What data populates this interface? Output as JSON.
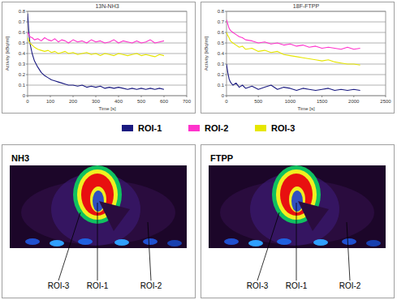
{
  "chart_data": [
    {
      "type": "line",
      "title": "13N-NH3",
      "x_label": "Time [s]",
      "y_label": "Activity [kBq/ml]",
      "x": [
        0,
        5,
        10,
        20,
        30,
        45,
        60,
        75,
        90,
        105,
        120,
        135,
        150,
        165,
        180,
        200,
        220,
        240,
        260,
        280,
        300,
        320,
        340,
        360,
        380,
        400,
        420,
        440,
        460,
        480,
        500,
        520,
        540,
        560,
        580,
        600
      ],
      "series": [
        {
          "name": "ROI-1",
          "color": "#1a1a80",
          "values": [
            0.78,
            0.62,
            0.5,
            0.4,
            0.33,
            0.27,
            0.22,
            0.19,
            0.17,
            0.15,
            0.14,
            0.13,
            0.12,
            0.11,
            0.1,
            0.1,
            0.09,
            0.1,
            0.08,
            0.09,
            0.08,
            0.09,
            0.07,
            0.08,
            0.07,
            0.08,
            0.07,
            0.06,
            0.07,
            0.06,
            0.07,
            0.06,
            0.07,
            0.06,
            0.07,
            0.06
          ]
        },
        {
          "name": "ROI-2",
          "color": "#ff33cc",
          "values": [
            0.6,
            0.58,
            0.56,
            0.55,
            0.53,
            0.54,
            0.52,
            0.55,
            0.53,
            0.52,
            0.54,
            0.51,
            0.53,
            0.52,
            0.5,
            0.53,
            0.51,
            0.52,
            0.5,
            0.53,
            0.51,
            0.52,
            0.5,
            0.51,
            0.53,
            0.5,
            0.52,
            0.51,
            0.5,
            0.52,
            0.5,
            0.51,
            0.53,
            0.5,
            0.51,
            0.52
          ]
        },
        {
          "name": "ROI-3",
          "color": "#e6e600",
          "values": [
            0.55,
            0.52,
            0.5,
            0.48,
            0.46,
            0.44,
            0.43,
            0.42,
            0.43,
            0.41,
            0.42,
            0.4,
            0.41,
            0.42,
            0.4,
            0.41,
            0.39,
            0.4,
            0.41,
            0.39,
            0.4,
            0.38,
            0.4,
            0.39,
            0.38,
            0.4,
            0.39,
            0.38,
            0.39,
            0.4,
            0.38,
            0.39,
            0.38,
            0.37,
            0.39,
            0.38
          ]
        }
      ],
      "xlim": [
        0,
        700
      ],
      "xticks": [
        0,
        100,
        200,
        300,
        400,
        500,
        600,
        700
      ],
      "ylim": [
        0,
        0.8
      ],
      "yticks": [
        0,
        0.1,
        0.2,
        0.3,
        0.4,
        0.5,
        0.6,
        0.7,
        0.8
      ],
      "grid": true
    },
    {
      "type": "line",
      "title": "18F-FTPP",
      "x_label": "Time [s]",
      "y_label": "Activity [kBq/ml]",
      "x": [
        0,
        20,
        40,
        60,
        100,
        150,
        200,
        250,
        300,
        400,
        500,
        600,
        700,
        800,
        900,
        1000,
        1100,
        1200,
        1300,
        1400,
        1500,
        1600,
        1700,
        1800,
        1900,
        2000,
        2100
      ],
      "series": [
        {
          "name": "ROI-1",
          "color": "#1a1a80",
          "values": [
            0.3,
            0.22,
            0.16,
            0.13,
            0.1,
            0.12,
            0.08,
            0.1,
            0.07,
            0.09,
            0.06,
            0.08,
            0.1,
            0.06,
            0.08,
            0.07,
            0.05,
            0.07,
            0.06,
            0.05,
            0.06,
            0.07,
            0.05,
            0.06,
            0.05,
            0.06,
            0.05
          ]
        },
        {
          "name": "ROI-2",
          "color": "#ff33cc",
          "values": [
            0.72,
            0.68,
            0.64,
            0.62,
            0.6,
            0.58,
            0.56,
            0.55,
            0.53,
            0.52,
            0.5,
            0.51,
            0.49,
            0.5,
            0.48,
            0.49,
            0.47,
            0.48,
            0.46,
            0.47,
            0.45,
            0.46,
            0.45,
            0.44,
            0.46,
            0.44,
            0.45
          ]
        },
        {
          "name": "ROI-3",
          "color": "#e6e600",
          "values": [
            0.6,
            0.57,
            0.55,
            0.52,
            0.5,
            0.48,
            0.46,
            0.47,
            0.44,
            0.45,
            0.42,
            0.43,
            0.41,
            0.42,
            0.39,
            0.38,
            0.37,
            0.36,
            0.35,
            0.34,
            0.33,
            0.34,
            0.32,
            0.31,
            0.3,
            0.3,
            0.29
          ]
        }
      ],
      "xlim": [
        0,
        2500
      ],
      "xticks": [
        0,
        500,
        1000,
        1500,
        2000,
        2500
      ],
      "ylim": [
        0,
        0.8
      ],
      "yticks": [
        0,
        0.1,
        0.2,
        0.3,
        0.4,
        0.5,
        0.6,
        0.7,
        0.8
      ],
      "grid": true
    }
  ],
  "images": [
    {
      "title": "NH3",
      "labels": [
        "ROI-3",
        "ROI-1",
        "ROI-2"
      ]
    },
    {
      "title": "FTPP",
      "labels": [
        "ROI-3",
        "ROI-1",
        "ROI-2"
      ]
    }
  ]
}
